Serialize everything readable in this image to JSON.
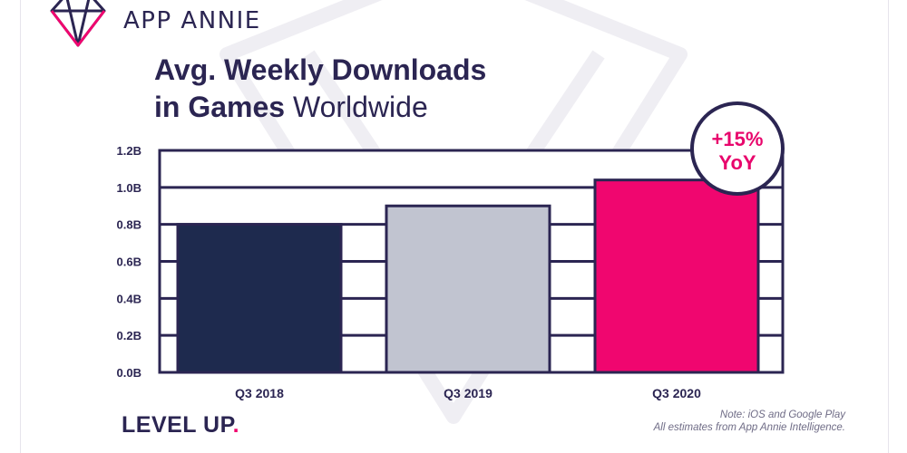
{
  "header": {
    "brand": "APP ANNIE"
  },
  "title": {
    "line1": "Avg. Weekly Downloads",
    "line2_bold": "in Games",
    "line2_light": "Worldwide"
  },
  "badge": {
    "line1": "+15%",
    "line2": "YoY"
  },
  "footer": {
    "tagline": "LEVEL UP",
    "tagline_dot": ".",
    "note_line1": "Note: iOS and Google Play",
    "note_line2": "All estimates from App Annie Intelligence."
  },
  "colors": {
    "outline": "#2b2552",
    "navy": "#1e2a4e",
    "gray": "#c1c4d0",
    "pink": "#f0066f",
    "pink_text": "#e8066c"
  },
  "chart_data": {
    "type": "bar",
    "categories": [
      "Q3 2018",
      "Q3 2019",
      "Q3 2020"
    ],
    "values": [
      0.8,
      0.9,
      1.04
    ],
    "bar_colors": [
      "#1e2a4e",
      "#c1c4d0",
      "#f0066f"
    ],
    "ytick_values": [
      0,
      0.2,
      0.4,
      0.6,
      0.8,
      1.0,
      1.2
    ],
    "ytick_labels": [
      "0.0B",
      "0.2B",
      "0.4B",
      "0.6B",
      "0.8B",
      "1.0B",
      "1.2B"
    ],
    "ylim": [
      0,
      1.2
    ],
    "grid": true,
    "title": "Avg. Weekly Downloads in Games Worldwide"
  }
}
